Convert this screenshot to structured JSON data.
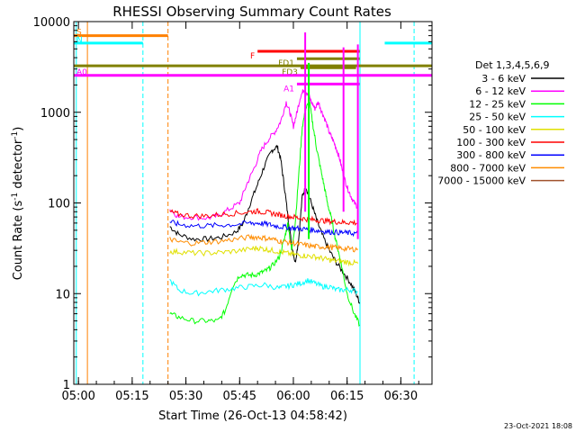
{
  "chart_data": {
    "type": "line",
    "title": "RHESSI Observing Summary Count Rates",
    "xlabel": "Start Time (26-Oct-13 04:58:42)",
    "ylabel_main": "Count Rate (s",
    "ylabel_sup1": "-1",
    "ylabel_mid": " detector",
    "ylabel_sup2": "-1",
    "ylabel_end": ")",
    "footer": "23-Oct-2021 18:08",
    "x_start_min": 298.7,
    "x_end_min": 398.7,
    "ylim": [
      1,
      10000
    ],
    "log_y": true,
    "xticks": [
      {
        "min": 300,
        "label": "05:00"
      },
      {
        "min": 315,
        "label": "05:15"
      },
      {
        "min": 330,
        "label": "05:30"
      },
      {
        "min": 345,
        "label": "05:45"
      },
      {
        "min": 360,
        "label": "06:00"
      },
      {
        "min": 375,
        "label": "06:15"
      },
      {
        "min": 390,
        "label": "06:30"
      }
    ],
    "yticks": [
      {
        "value": 1,
        "label": "1"
      },
      {
        "value": 10,
        "label": "10"
      },
      {
        "value": 100,
        "label": "100"
      },
      {
        "value": 1000,
        "label": "1000"
      },
      {
        "value": 10000,
        "label": "10000"
      }
    ],
    "legend_title": "Det 1,3,4,5,6,9",
    "legend_placement": "right",
    "series": [
      {
        "name": "3 - 6 keV",
        "color": "#000000",
        "points": [
          [
            325.5,
            55
          ],
          [
            328,
            45
          ],
          [
            332,
            40
          ],
          [
            336,
            40
          ],
          [
            340,
            42
          ],
          [
            344,
            48
          ],
          [
            346,
            60
          ],
          [
            348,
            100
          ],
          [
            350,
            160
          ],
          [
            352,
            260
          ],
          [
            354,
            380
          ],
          [
            355.5,
            420
          ],
          [
            356.5,
            300
          ],
          [
            357.5,
            150
          ],
          [
            358.5,
            70
          ],
          [
            359.5,
            35
          ],
          [
            360.5,
            22
          ],
          [
            361.5,
            40
          ],
          [
            362.5,
            120
          ],
          [
            363.5,
            150
          ],
          [
            365,
            100
          ],
          [
            366.5,
            65
          ],
          [
            368,
            45
          ],
          [
            370,
            30
          ],
          [
            372,
            22
          ],
          [
            374,
            17
          ],
          [
            376,
            13
          ],
          [
            377.5,
            10
          ],
          [
            378.5,
            8
          ]
        ]
      },
      {
        "name": "6 - 12 keV",
        "color": "#ff00ff",
        "points": [
          [
            325.5,
            85
          ],
          [
            328,
            70
          ],
          [
            332,
            70
          ],
          [
            336,
            68
          ],
          [
            339,
            72
          ],
          [
            342,
            85
          ],
          [
            345,
            100
          ],
          [
            347,
            160
          ],
          [
            349,
            240
          ],
          [
            351,
            380
          ],
          [
            353,
            500
          ],
          [
            355,
            620
          ],
          [
            356.5,
            800
          ],
          [
            358,
            1300
          ],
          [
            359,
            1000
          ],
          [
            360,
            700
          ],
          [
            361,
            1000
          ],
          [
            362,
            1500
          ],
          [
            363,
            1800
          ],
          [
            364,
            1600
          ],
          [
            365,
            1300
          ],
          [
            366,
            1100
          ],
          [
            367,
            1300
          ],
          [
            368,
            1000
          ],
          [
            369,
            800
          ],
          [
            370,
            600
          ],
          [
            371,
            500
          ],
          [
            372,
            400
          ],
          [
            373,
            300
          ],
          [
            374,
            200
          ],
          [
            375,
            150
          ],
          [
            376,
            120
          ],
          [
            377,
            100
          ],
          [
            378,
            90
          ]
        ]
      },
      {
        "name": "12 - 25 keV",
        "color": "#00ff00",
        "points": [
          [
            325.5,
            6
          ],
          [
            328,
            5.5
          ],
          [
            332,
            5
          ],
          [
            336,
            5
          ],
          [
            339,
            5
          ],
          [
            341,
            6.5
          ],
          [
            343,
            12
          ],
          [
            345,
            16
          ],
          [
            347,
            16
          ],
          [
            349,
            16
          ],
          [
            351,
            17
          ],
          [
            352.5,
            18
          ],
          [
            354,
            20
          ],
          [
            356,
            25
          ],
          [
            357.5,
            40
          ],
          [
            358.5,
            60
          ],
          [
            359.5,
            30
          ],
          [
            360.5,
            60
          ],
          [
            361.5,
            200
          ],
          [
            362.5,
            700
          ],
          [
            363.5,
            1100
          ],
          [
            364.5,
            1300
          ],
          [
            365.5,
            700
          ],
          [
            366.5,
            400
          ],
          [
            367.5,
            250
          ],
          [
            368.5,
            160
          ],
          [
            369.5,
            100
          ],
          [
            370.5,
            70
          ],
          [
            371.5,
            45
          ],
          [
            372.5,
            30
          ],
          [
            373.5,
            20
          ],
          [
            375,
            10
          ],
          [
            377,
            6
          ],
          [
            378.5,
            4.5
          ]
        ]
      },
      {
        "name": "25 - 50 keV",
        "color": "#00ffff",
        "points": [
          [
            325.5,
            14
          ],
          [
            328,
            11
          ],
          [
            332,
            10
          ],
          [
            336,
            10.5
          ],
          [
            340,
            11
          ],
          [
            344,
            11.5
          ],
          [
            348,
            12
          ],
          [
            352,
            12.5
          ],
          [
            356,
            11.5
          ],
          [
            358,
            12
          ],
          [
            360,
            12.5
          ],
          [
            362,
            13
          ],
          [
            364,
            14
          ],
          [
            366,
            13
          ],
          [
            368,
            12
          ],
          [
            370,
            12
          ],
          [
            372,
            11
          ],
          [
            374,
            11
          ],
          [
            376,
            11
          ],
          [
            378,
            10.5
          ]
        ]
      },
      {
        "name": "50 - 100 keV",
        "color": "#e0e000",
        "points": [
          [
            325.5,
            29
          ],
          [
            328,
            29
          ],
          [
            332,
            28
          ],
          [
            336,
            28
          ],
          [
            340,
            28.5
          ],
          [
            344,
            29.5
          ],
          [
            348,
            31
          ],
          [
            350,
            32
          ],
          [
            352,
            31
          ],
          [
            354,
            30
          ],
          [
            356,
            29
          ],
          [
            358,
            28
          ],
          [
            360,
            27
          ],
          [
            362,
            26.5
          ],
          [
            364,
            26
          ],
          [
            366,
            25.5
          ],
          [
            368,
            24.5
          ],
          [
            370,
            23.5
          ],
          [
            372,
            23
          ],
          [
            374,
            22.5
          ],
          [
            376,
            22
          ],
          [
            378,
            21.5
          ]
        ]
      },
      {
        "name": "100 - 300 keV",
        "color": "#ff0000",
        "points": [
          [
            325.5,
            80
          ],
          [
            328,
            75
          ],
          [
            332,
            72
          ],
          [
            336,
            72
          ],
          [
            340,
            75
          ],
          [
            344,
            77
          ],
          [
            348,
            80
          ],
          [
            350,
            81
          ],
          [
            352,
            79
          ],
          [
            354,
            77
          ],
          [
            356,
            74
          ],
          [
            358,
            72
          ],
          [
            360,
            70
          ],
          [
            362,
            68
          ],
          [
            364,
            66
          ],
          [
            366,
            65
          ],
          [
            368,
            64
          ],
          [
            370,
            63
          ],
          [
            372,
            62
          ],
          [
            374,
            61
          ],
          [
            376,
            61
          ],
          [
            378,
            60
          ]
        ]
      },
      {
        "name": "300 - 800 keV",
        "color": "#0000ff",
        "points": [
          [
            325.5,
            62
          ],
          [
            328,
            58
          ],
          [
            332,
            56
          ],
          [
            336,
            56
          ],
          [
            340,
            57
          ],
          [
            344,
            58
          ],
          [
            348,
            60
          ],
          [
            350,
            60
          ],
          [
            352,
            59
          ],
          [
            354,
            57
          ],
          [
            356,
            55
          ],
          [
            358,
            54
          ],
          [
            360,
            53
          ],
          [
            362,
            52
          ],
          [
            364,
            51
          ],
          [
            366,
            50
          ],
          [
            368,
            49
          ],
          [
            370,
            48
          ],
          [
            372,
            47.5
          ],
          [
            374,
            47
          ],
          [
            376,
            46.5
          ],
          [
            378,
            46
          ]
        ]
      },
      {
        "name": "800 - 7000 keV",
        "color": "#ff8c00",
        "points": [
          [
            325.5,
            40
          ],
          [
            328,
            37
          ],
          [
            332,
            36
          ],
          [
            336,
            37
          ],
          [
            340,
            38
          ],
          [
            344,
            40
          ],
          [
            348,
            42
          ],
          [
            350,
            42
          ],
          [
            352,
            41
          ],
          [
            354,
            40
          ],
          [
            356,
            38
          ],
          [
            358,
            37
          ],
          [
            360,
            36
          ],
          [
            362,
            35
          ],
          [
            364,
            34
          ],
          [
            366,
            33
          ],
          [
            368,
            33
          ],
          [
            370,
            32.5
          ],
          [
            372,
            32
          ],
          [
            374,
            31.5
          ],
          [
            376,
            31
          ],
          [
            378,
            31
          ]
        ]
      },
      {
        "name": "7000 - 15000 keV",
        "color": "#a0522d",
        "points": []
      }
    ],
    "flag_bars": [
      {
        "label": "S",
        "color": "#ff8000",
        "y": 7000,
        "x0": 298.7,
        "x1": 325.0
      },
      {
        "label": "N",
        "color": "#00ffff",
        "y": 5800,
        "x0": 298.7,
        "x1": 318.0
      },
      {
        "label": "",
        "color": "#00ffff",
        "y": 5800,
        "x0": 385.5,
        "x1": 398.7
      },
      {
        "label": "F",
        "color": "#ff0000",
        "y": 4700,
        "x0": 350.0,
        "x1": 378.5
      },
      {
        "label": "FD1",
        "color": "#808000",
        "y": 3900,
        "x0": 361.0,
        "x1": 378.5
      },
      {
        "label": "",
        "color": "#808000",
        "y": 3250,
        "x0": 298.7,
        "x1": 398.7
      },
      {
        "label": "FD3",
        "color": "#808000",
        "y": 3100,
        "x0": 362.0,
        "x1": 377.5
      },
      {
        "label": "A0",
        "color": "#ff00ff",
        "y": 2550,
        "x0": 298.7,
        "x1": 398.7
      },
      {
        "label": "A1",
        "color": "#ff00ff",
        "y": 2050,
        "x0": 361.0,
        "x1": 378.5
      }
    ],
    "spikes": [
      {
        "color": "#ff00ff",
        "x": 363.3,
        "y0": 80,
        "y1": 7600
      },
      {
        "color": "#00ff00",
        "x": 364.3,
        "y0": 40,
        "y1": 3500
      },
      {
        "color": "#ff00ff",
        "x": 374.0,
        "y0": 80,
        "y1": 5200
      },
      {
        "color": "#ff00ff",
        "x": 378.0,
        "y0": 40,
        "y1": 5600
      }
    ],
    "vlines": [
      {
        "color": "#00ffff",
        "x": 299.4,
        "dashed": false
      },
      {
        "color": "#ff8000",
        "x": 302.5,
        "dashed": false
      },
      {
        "color": "#00ffff",
        "x": 318.0,
        "dashed": true
      },
      {
        "color": "#ff8000",
        "x": 325.0,
        "dashed": true
      },
      {
        "color": "#00ffff",
        "x": 378.6,
        "dashed": false
      },
      {
        "color": "#00ffff",
        "x": 393.7,
        "dashed": true
      }
    ]
  }
}
